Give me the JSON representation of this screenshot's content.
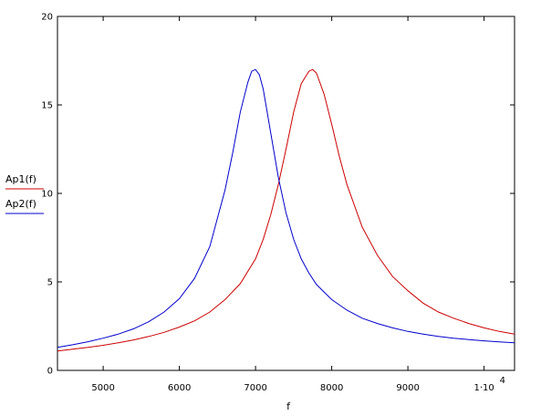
{
  "chart_data": {
    "type": "line",
    "xlabel": "f",
    "xlim": [
      4400,
      10400
    ],
    "ylim": [
      0,
      20
    ],
    "grid": false,
    "x_ticks": [
      {
        "value": 5000,
        "label": "5000"
      },
      {
        "value": 6000,
        "label": "6000"
      },
      {
        "value": 7000,
        "label": "7000"
      },
      {
        "value": 8000,
        "label": "8000"
      },
      {
        "value": 9000,
        "label": "9000"
      },
      {
        "value": 10000,
        "label": "1·10",
        "exponent": "4"
      }
    ],
    "y_ticks": [
      {
        "value": 0,
        "label": "0"
      },
      {
        "value": 5,
        "label": "5"
      },
      {
        "value": 10,
        "label": "10"
      },
      {
        "value": 15,
        "label": "15"
      },
      {
        "value": 20,
        "label": "20"
      }
    ],
    "legend": {
      "placement": "left"
    },
    "series": [
      {
        "name": "Ap1(f)",
        "color": "#cc0000",
        "x": [
          4400,
          4600,
          4800,
          5000,
          5200,
          5400,
          5600,
          5800,
          6000,
          6200,
          6400,
          6600,
          6800,
          7000,
          7100,
          7200,
          7300,
          7400,
          7500,
          7600,
          7700,
          7750,
          7800,
          7900,
          8000,
          8100,
          8200,
          8400,
          8600,
          8800,
          9000,
          9200,
          9400,
          9600,
          9800,
          10000,
          10200,
          10400
        ],
        "y": [
          1.1,
          1.2,
          1.3,
          1.42,
          1.56,
          1.72,
          1.92,
          2.15,
          2.45,
          2.8,
          3.3,
          4.0,
          4.9,
          6.3,
          7.4,
          8.8,
          10.5,
          12.5,
          14.6,
          16.2,
          16.9,
          17.0,
          16.8,
          15.6,
          13.9,
          12.1,
          10.5,
          8.1,
          6.5,
          5.3,
          4.5,
          3.8,
          3.3,
          2.95,
          2.65,
          2.4,
          2.2,
          2.05
        ]
      },
      {
        "name": "Ap2(f)",
        "color": "#0000cc",
        "x": [
          4400,
          4600,
          4800,
          5000,
          5200,
          5400,
          5600,
          5800,
          6000,
          6200,
          6400,
          6600,
          6700,
          6800,
          6900,
          6950,
          7000,
          7050,
          7100,
          7200,
          7300,
          7400,
          7500,
          7600,
          7700,
          7800,
          8000,
          8200,
          8400,
          8600,
          8800,
          9000,
          9200,
          9400,
          9600,
          9800,
          10000,
          10200,
          10400
        ],
        "y": [
          1.3,
          1.45,
          1.62,
          1.82,
          2.05,
          2.35,
          2.75,
          3.3,
          4.05,
          5.2,
          7.0,
          10.2,
          12.3,
          14.6,
          16.3,
          16.9,
          17.0,
          16.7,
          15.9,
          13.4,
          10.9,
          8.9,
          7.4,
          6.3,
          5.5,
          4.85,
          4.0,
          3.4,
          2.95,
          2.65,
          2.4,
          2.2,
          2.05,
          1.92,
          1.82,
          1.74,
          1.67,
          1.61,
          1.56
        ]
      }
    ]
  }
}
